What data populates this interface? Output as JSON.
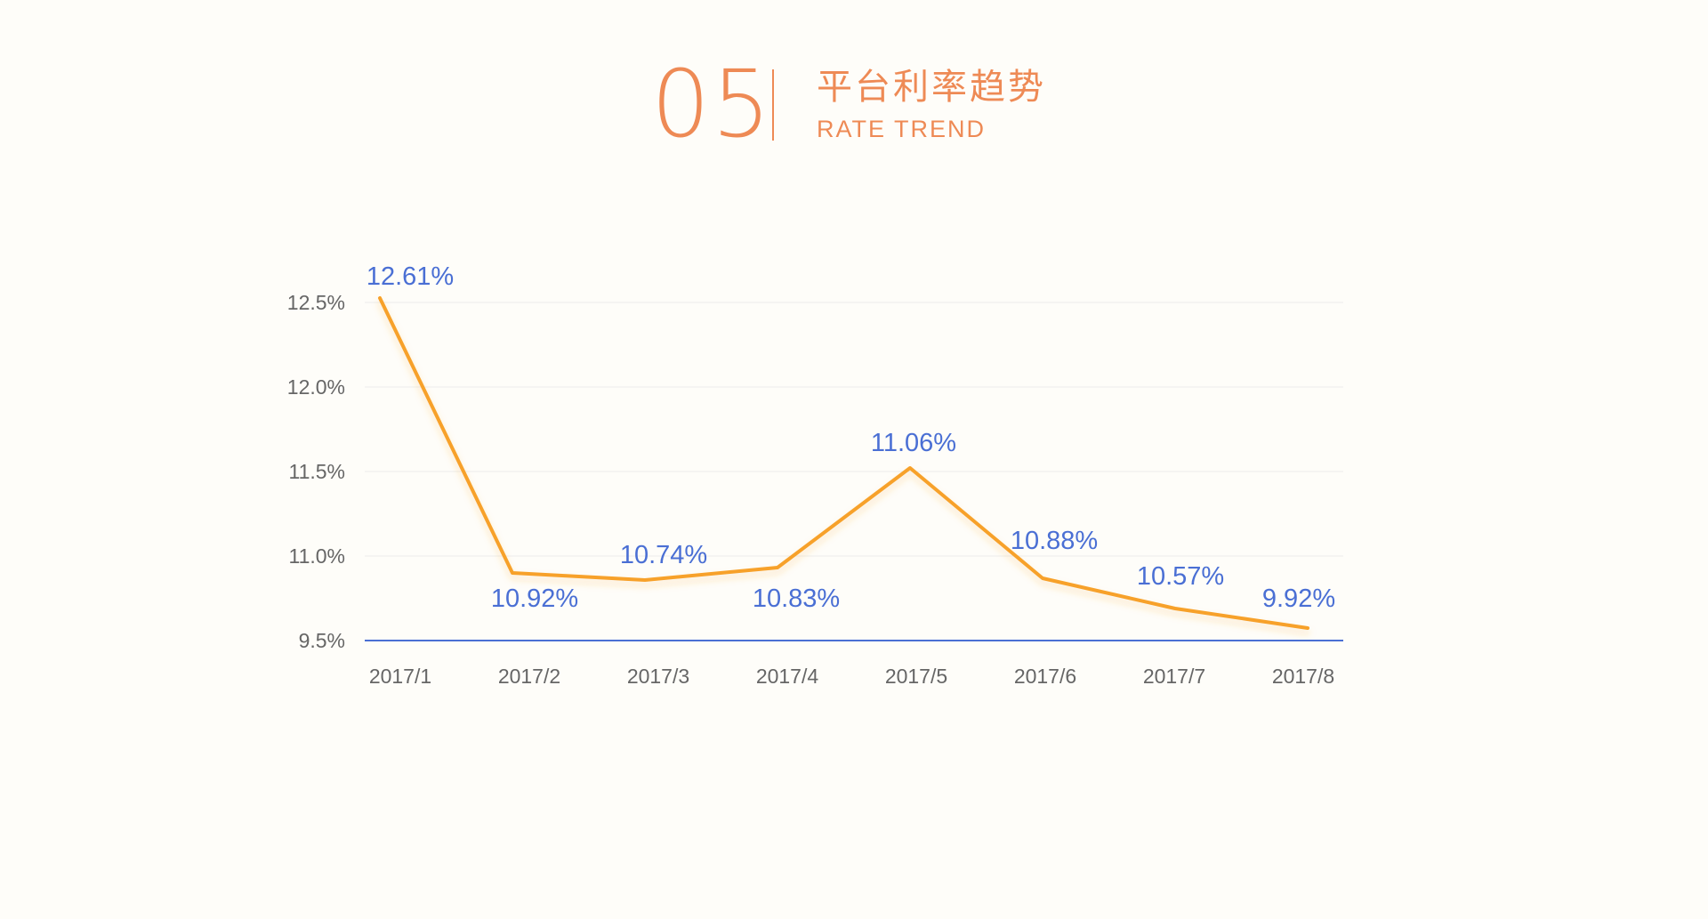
{
  "header": {
    "number": "05",
    "title_cn": "平台利率趋势",
    "title_en": "RATE TREND"
  },
  "colors": {
    "accent": "#ee8a55",
    "line": "#f7a12a",
    "label": "#4a6fd4",
    "axis": "#4a6fd4",
    "grid": "#ececec",
    "tick": "#666666",
    "background": "#fefdf9"
  },
  "chart_data": {
    "type": "line",
    "categories": [
      "2017/1",
      "2017/2",
      "2017/3",
      "2017/4",
      "2017/5",
      "2017/6",
      "2017/7",
      "2017/8"
    ],
    "series": [
      {
        "values": [
          12.61,
          10.92,
          10.74,
          10.83,
          11.06,
          10.88,
          10.57,
          9.92
        ],
        "labels": [
          "12.61%",
          "10.92%",
          "10.74%",
          "10.83%",
          "11.06%",
          "10.88%",
          "10.57%",
          "9.92%"
        ]
      }
    ],
    "ytick_labels": [
      "9.5%",
      "11.0%",
      "11.5%",
      "12.0%",
      "12.5%"
    ],
    "grid": true,
    "legend": "none",
    "title": "",
    "xlabel": "",
    "ylabel": ""
  }
}
